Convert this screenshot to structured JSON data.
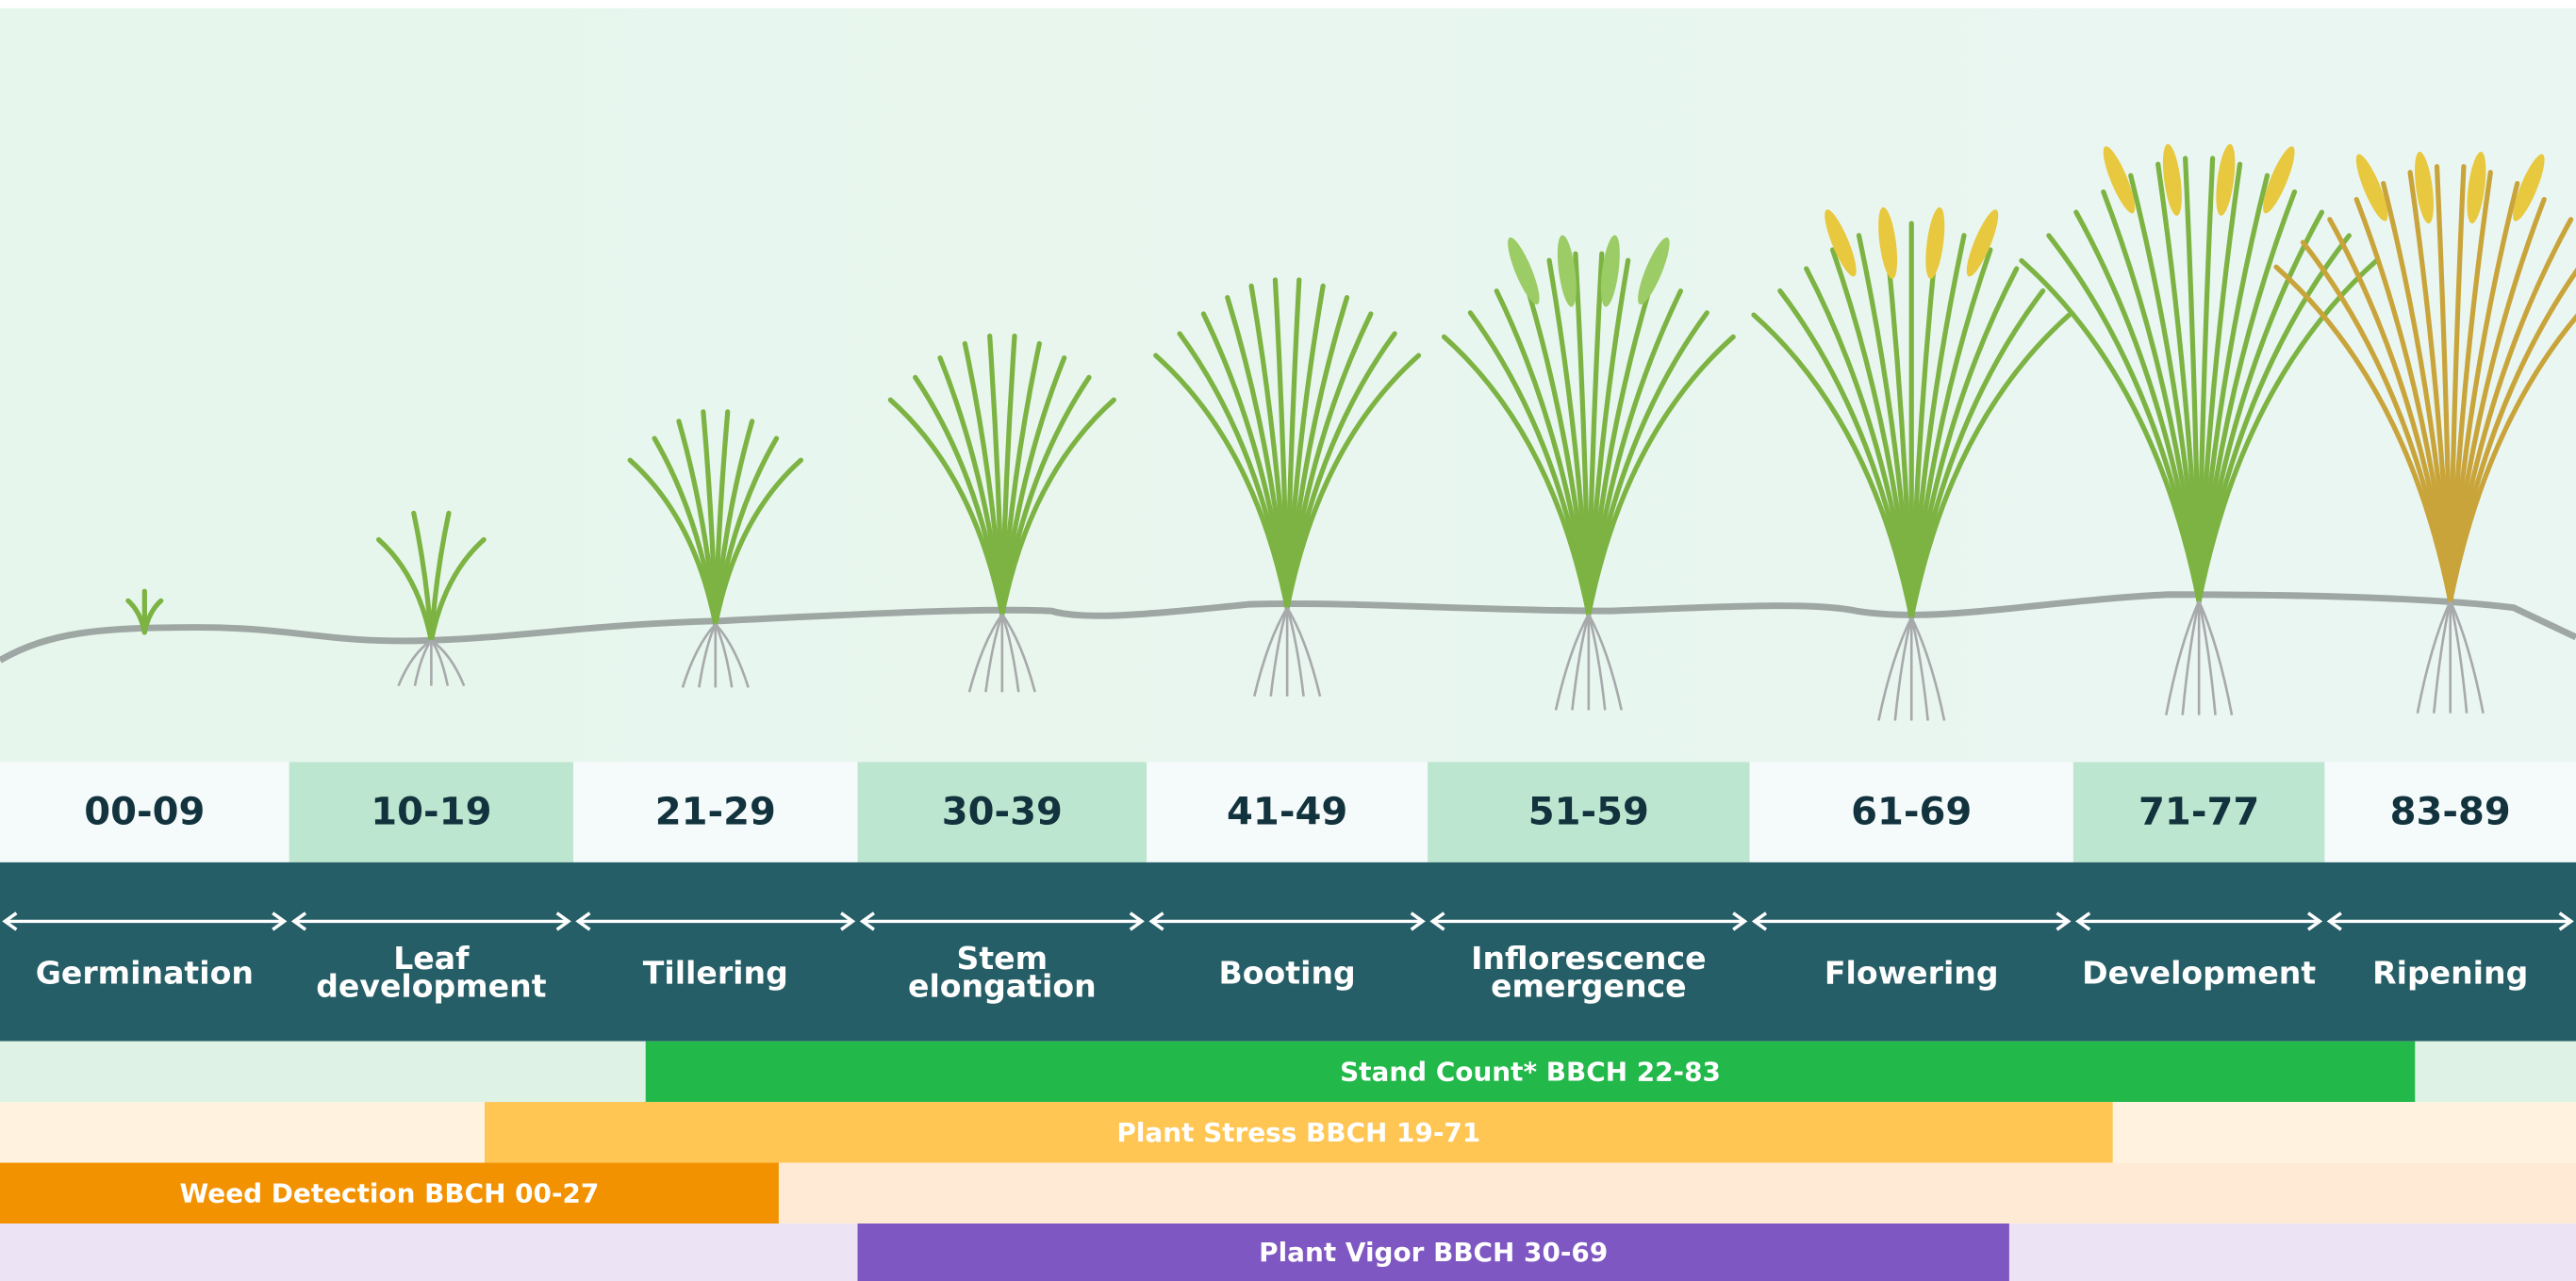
{
  "stages": [
    {
      "code": "00-09",
      "name": "Germination"
    },
    {
      "code": "10-19",
      "name": "Leaf development"
    },
    {
      "code": "21-29",
      "name": "Tillering"
    },
    {
      "code": "30-39",
      "name": "Stem elongation"
    },
    {
      "code": "41-49",
      "name": "Booting"
    },
    {
      "code": "51-59",
      "name": "Inflorescence emergence"
    },
    {
      "code": "61-69",
      "name": "Flowering"
    },
    {
      "code": "71-77",
      "name": "Development"
    },
    {
      "code": "83-89",
      "name": "Ripening"
    }
  ],
  "bars": [
    {
      "label": "Stand Count* BBCH 22-83"
    },
    {
      "label": "Plant Stress BBCH 19-71"
    },
    {
      "label": "Weed Detection BBCH 00-27"
    },
    {
      "label": "Plant Vigor BBCH 30-69"
    }
  ]
}
